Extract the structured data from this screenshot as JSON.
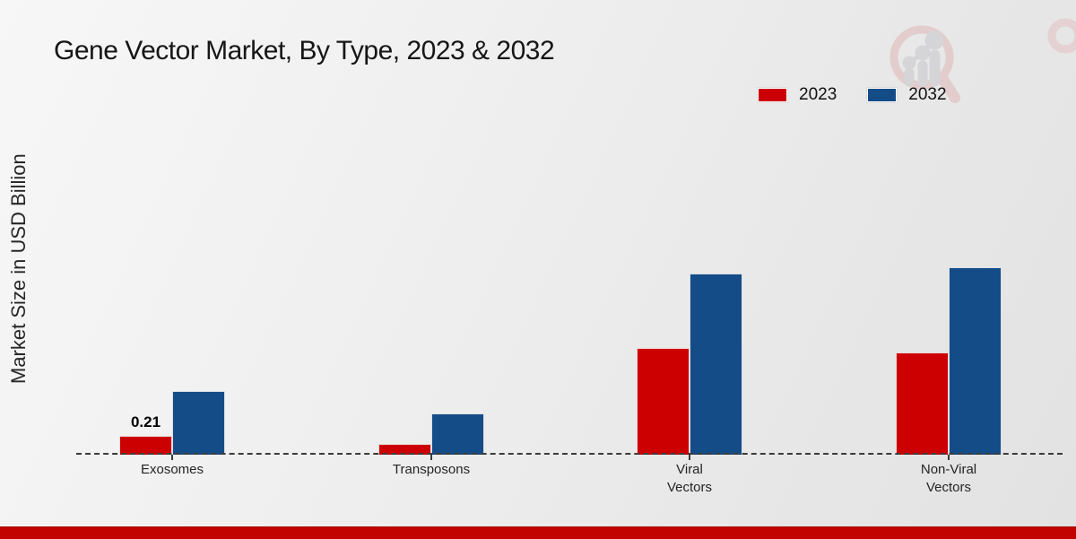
{
  "header": {
    "title": "Gene Vector Market, By Type, 2023 & 2032"
  },
  "colors": {
    "series_2023": "#cc0000",
    "series_2032": "#144c87",
    "footer_band": "#c20101",
    "axis": "#3c3c3c"
  },
  "chart_data": {
    "type": "bar",
    "title": "Gene Vector Market, By Type, 2023 & 2032",
    "xlabel": "",
    "ylabel": "Market Size in USD Billion",
    "categories": [
      "Exosomes",
      "Transposons",
      "Viral Vectors",
      "Non-Viral Vectors"
    ],
    "category_labels_wrapped": [
      "Exosomes",
      "Transposons",
      "Viral\nVectors",
      "Non-Viral\nVectors"
    ],
    "series": [
      {
        "name": "2023",
        "color": "#cc0000",
        "values": [
          0.21,
          0.12,
          1.19,
          1.14
        ]
      },
      {
        "name": "2032",
        "color": "#144c87",
        "values": [
          0.71,
          0.46,
          2.02,
          2.09
        ]
      }
    ],
    "value_labels": [
      {
        "series": "2023",
        "category": "Exosomes",
        "text": "0.21"
      }
    ],
    "legend_position": "top-right",
    "grid": false,
    "baseline_style": "dashed",
    "ylim": [
      0,
      2.2
    ]
  },
  "legend": {
    "items": [
      {
        "label": "2023",
        "color": "#cc0000"
      },
      {
        "label": "2032",
        "color": "#144c87"
      }
    ]
  },
  "watermark": {
    "icon": "magnifier-growth-chart-logo"
  }
}
